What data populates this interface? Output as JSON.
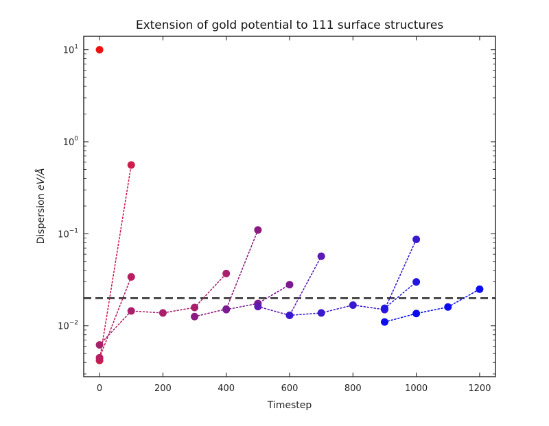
{
  "chart_data": {
    "type": "scatter",
    "title": "Extension of gold potential to 111 surface structures",
    "xlabel": "Timestep",
    "ylabel": "Dispersion eV/Å",
    "ylabel_parts": {
      "prefix": "Dispersion ",
      "unit": "eV/Å"
    },
    "xlim": [
      -50,
      1250
    ],
    "ylim": [
      0.0028,
      14
    ],
    "yscale": "log",
    "xticks": [
      0,
      200,
      400,
      600,
      800,
      1000,
      1200
    ],
    "xtick_labels": [
      "0",
      "200",
      "400",
      "600",
      "800",
      "1000",
      "1200"
    ],
    "yticks": [
      {
        "value": 0.01,
        "base": "10",
        "exp": "−2"
      },
      {
        "value": 0.1,
        "base": "10",
        "exp": "−1"
      },
      {
        "value": 1,
        "base": "10",
        "exp": "0"
      },
      {
        "value": 10,
        "base": "10",
        "exp": "1"
      }
    ],
    "threshold": {
      "y": 0.02,
      "style": "dashed",
      "color": "#333333"
    },
    "grid": false,
    "legend": "none",
    "series": [
      {
        "color": "#ee1111",
        "points": [
          [
            0,
            10
          ]
        ]
      },
      {
        "color": "#cc1d4d",
        "points": [
          [
            0,
            0.0042
          ],
          [
            100,
            0.56
          ]
        ]
      },
      {
        "color": "#b81e60",
        "points": [
          [
            0,
            0.0045
          ],
          [
            100,
            0.034
          ]
        ]
      },
      {
        "color": "#a81f6a",
        "points": [
          [
            0,
            0.0062
          ],
          [
            100,
            0.0145
          ],
          [
            200,
            0.0138
          ],
          [
            300,
            0.0158
          ],
          [
            400,
            0.037
          ]
        ]
      },
      {
        "color": "#8c1a80",
        "points": [
          [
            300,
            0.0126
          ],
          [
            400,
            0.0152
          ],
          [
            500,
            0.11
          ]
        ]
      },
      {
        "color": "#7a1a8e",
        "points": [
          [
            400,
            0.015
          ],
          [
            500,
            0.0175
          ],
          [
            600,
            0.028
          ]
        ]
      },
      {
        "color": "#5d1ab4",
        "points": [
          [
            500,
            0.0162
          ],
          [
            600,
            0.013
          ],
          [
            700,
            0.057
          ]
        ]
      },
      {
        "color": "#3a18cf",
        "points": [
          [
            600,
            0.013
          ],
          [
            700,
            0.0138
          ],
          [
            800,
            0.0168
          ],
          [
            900,
            0.015
          ],
          [
            1000,
            0.087
          ]
        ]
      },
      {
        "color": "#2214e2",
        "points": [
          [
            900,
            0.0155
          ],
          [
            1000,
            0.03
          ]
        ]
      },
      {
        "color": "#0c0cf0",
        "points": [
          [
            900,
            0.011
          ],
          [
            1000,
            0.0136
          ],
          [
            1100,
            0.016
          ],
          [
            1200,
            0.025
          ]
        ]
      }
    ]
  }
}
